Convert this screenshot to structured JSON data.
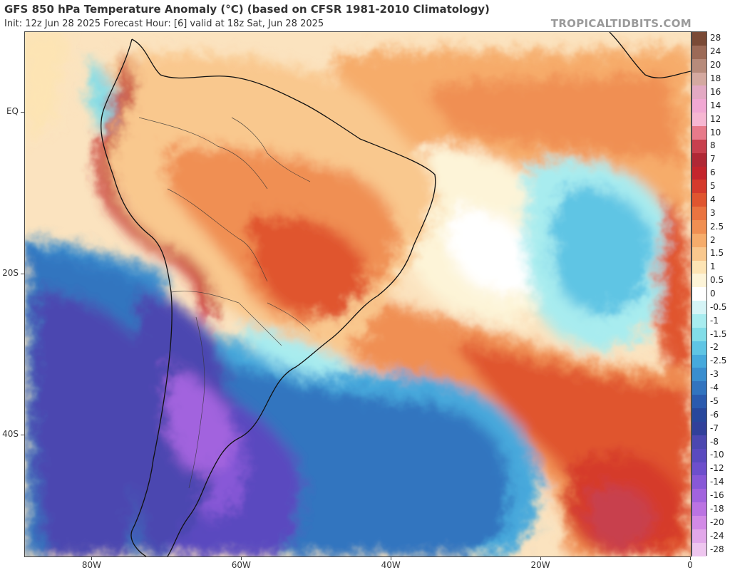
{
  "header": {
    "title": "GFS 850 hPa Temperature Anomaly (°C) (based on CFSR 1981-2010 Climatology)",
    "subtitle": "Init: 12z Jun 28 2025   Forecast Hour: [6]   valid at 18z Sat, Jun 28 2025",
    "brand": "TROPICALTIDBITS.COM"
  },
  "map": {
    "lat_labels": [
      "EQ",
      "20S",
      "40S"
    ],
    "lon_labels": [
      "80W",
      "60W",
      "40W",
      "20W",
      "0"
    ],
    "lat_values": [
      0,
      -20,
      -40
    ],
    "lon_values": [
      -80,
      -60,
      -40,
      -20,
      0
    ],
    "extent": {
      "lon_min": -89,
      "lon_max": 0,
      "lat_max": 10,
      "lat_min": -55
    }
  },
  "colorbar": {
    "labels": [
      "28",
      "24",
      "20",
      "18",
      "16",
      "14",
      "12",
      "10",
      "8",
      "7",
      "6",
      "5",
      "4",
      "3",
      "2.5",
      "2",
      "1.5",
      "1",
      "0.5",
      "0",
      "-0.5",
      "-1",
      "-1.5",
      "-2",
      "-2.5",
      "-3",
      "-4",
      "-5",
      "-6",
      "-7",
      "-8",
      "-10",
      "-12",
      "-14",
      "-16",
      "-18",
      "-20",
      "-24",
      "-28"
    ],
    "colors": [
      "#7a4a36",
      "#9c6a57",
      "#b78b7b",
      "#d4a9a0",
      "#e3a9c3",
      "#f1a8d3",
      "#f6b7d2",
      "#e77a8a",
      "#c8404e",
      "#b02835",
      "#c4252c",
      "#d53a2c",
      "#e0552f",
      "#ea7440",
      "#f08f52",
      "#f6ac6b",
      "#f9c88e",
      "#fde4b4",
      "#fdf4d8",
      "#ffffff",
      "#d5f4f6",
      "#a8ecef",
      "#82dde8",
      "#5fc5e4",
      "#46a9dc",
      "#3a8ecf",
      "#3274bf",
      "#2b5aae",
      "#28479c",
      "#31409a",
      "#4c47b0",
      "#5a4abf",
      "#6d4fcc",
      "#8858d7",
      "#a263de",
      "#bb73e2",
      "#d28ae6",
      "#e2a8ea",
      "#eec6ef"
    ]
  }
}
